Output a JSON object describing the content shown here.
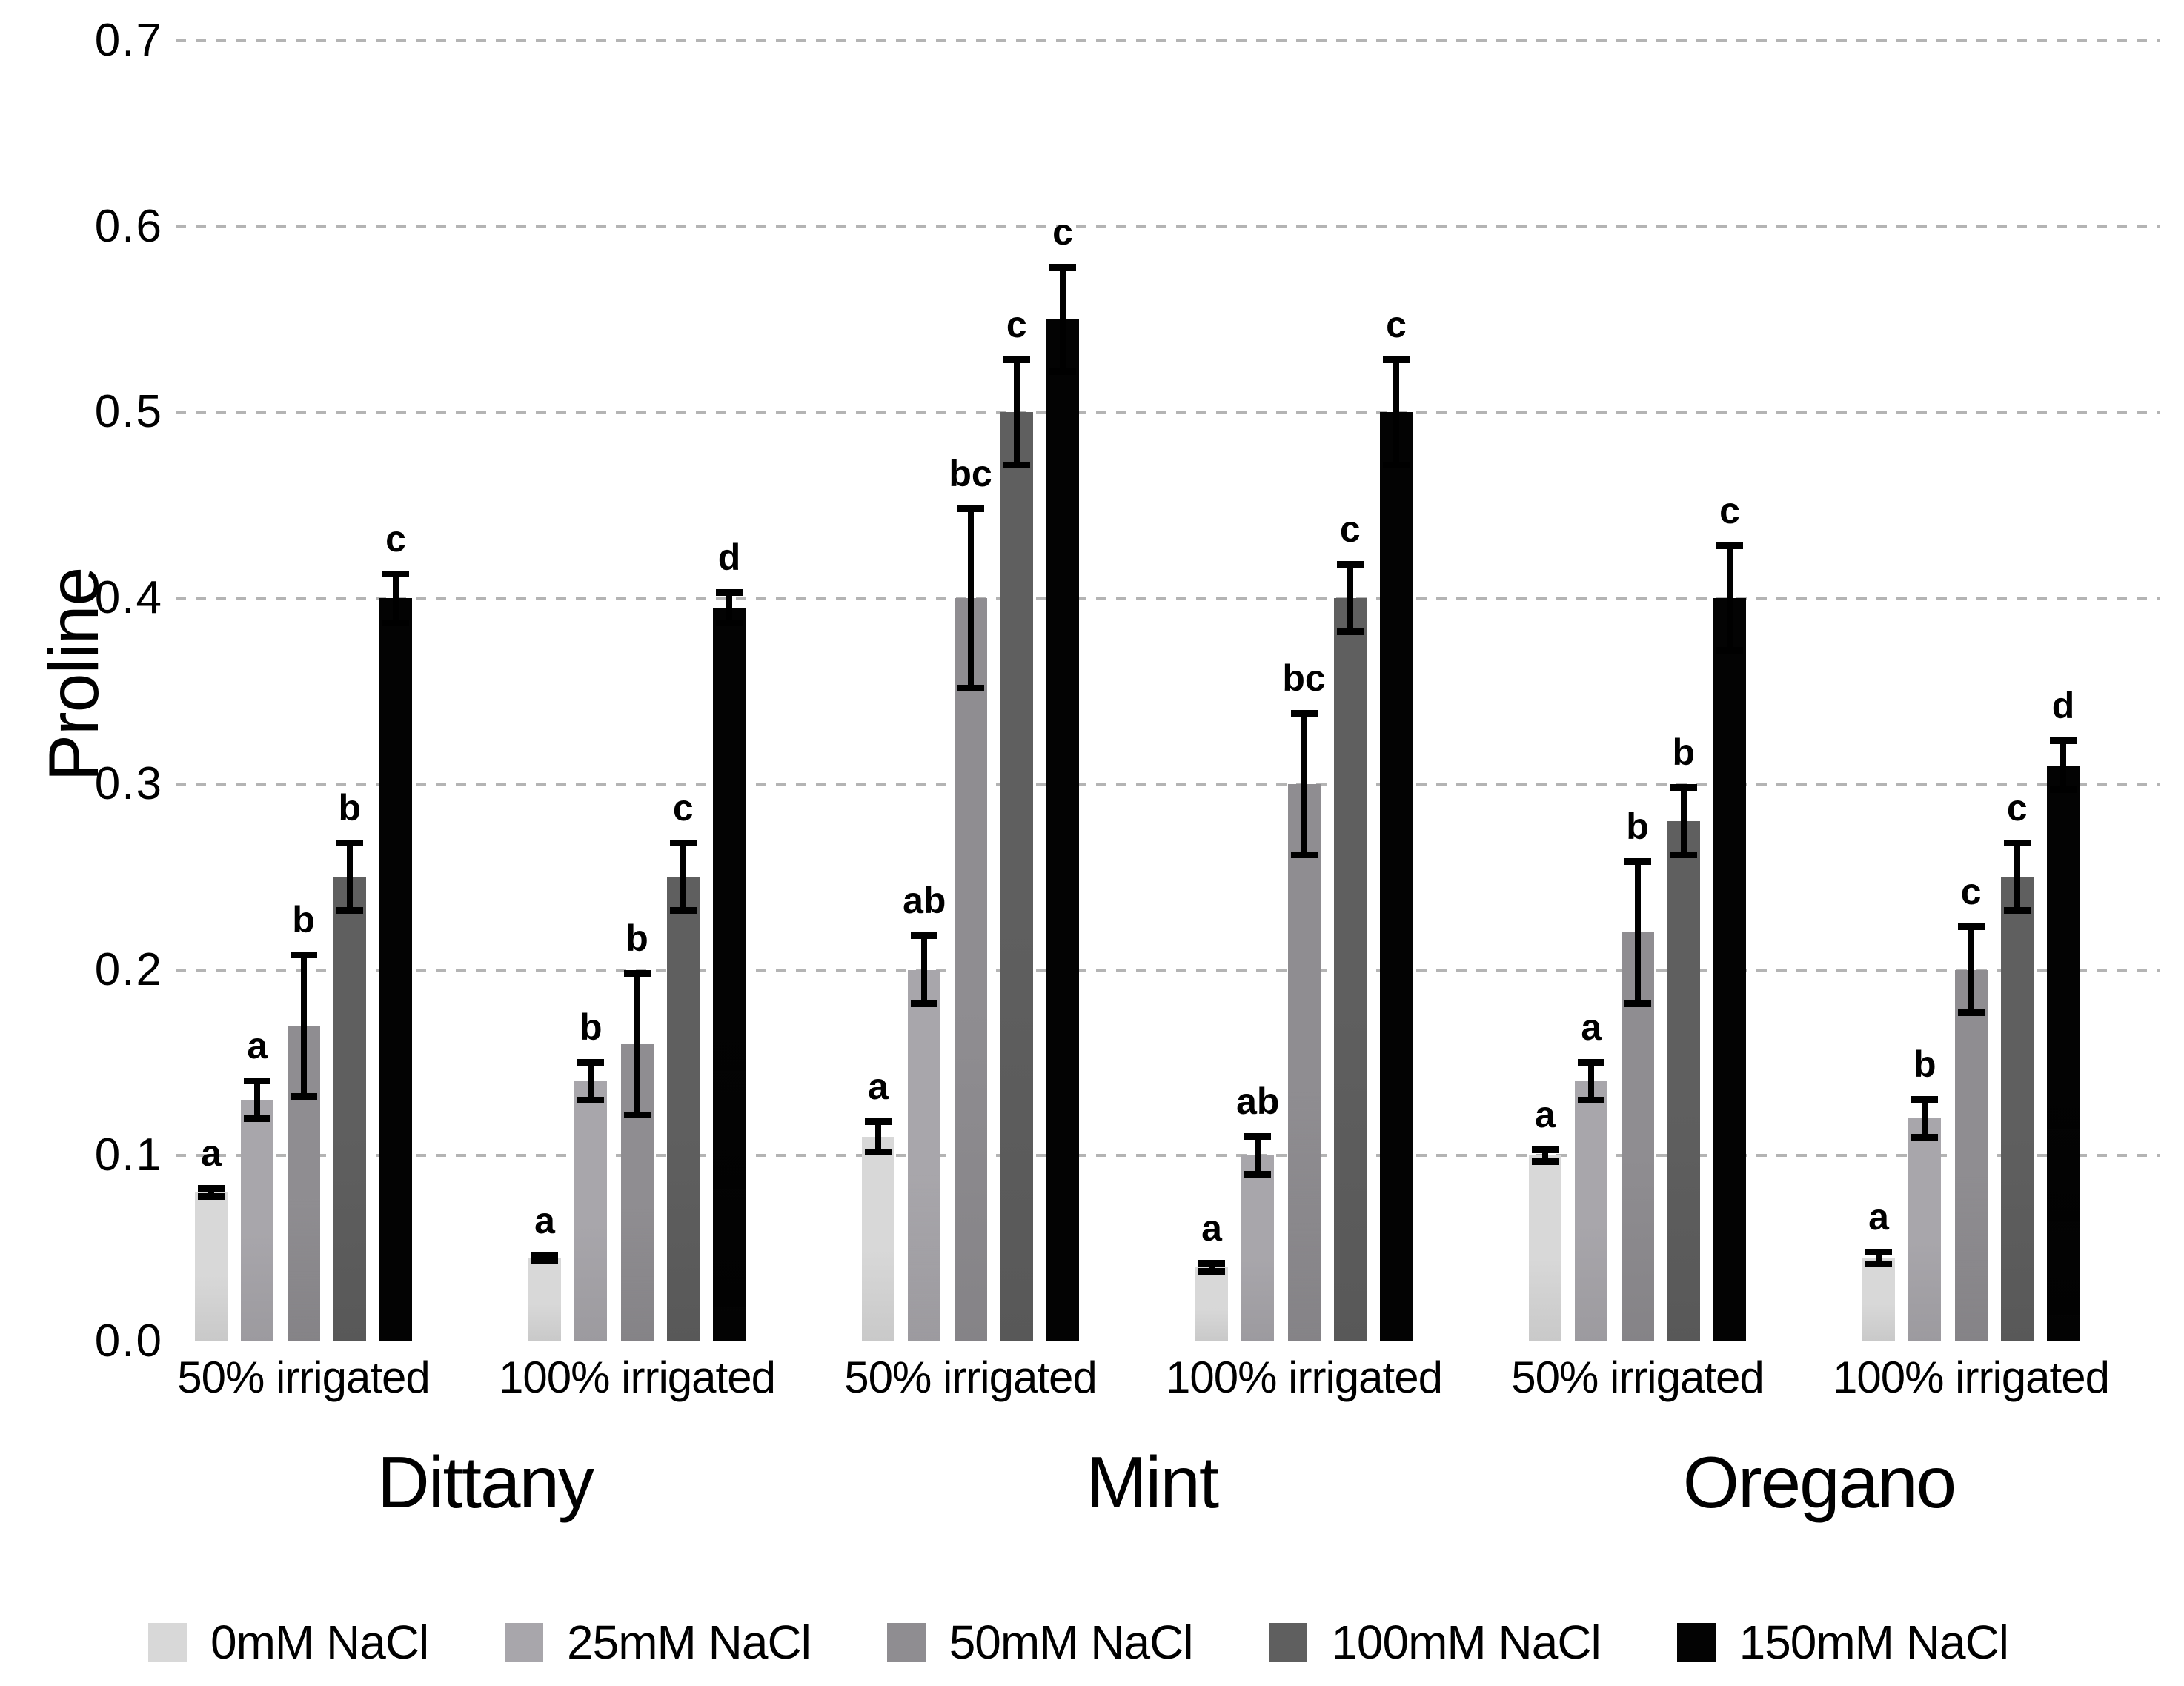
{
  "chart_data": {
    "type": "bar",
    "title": "",
    "ylabel": "Proline",
    "xlabel": "",
    "ylim": [
      0,
      0.7
    ],
    "y_ticks": [
      "0.0",
      "0.1",
      "0.2",
      "0.3",
      "0.4",
      "0.5",
      "0.6",
      "0.7"
    ],
    "grid": "horizontal dashed gridlines at 0.1 intervals (0.1 to 0.7), no axis lines",
    "legend_position": "bottom",
    "gridline_color": "#b4b4b4",
    "error_bar_color": "#000000",
    "series": [
      {
        "name": "0mM NaCl",
        "color": "#d8d8d8"
      },
      {
        "name": "25mM NaCl",
        "color": "#a8a6ab"
      },
      {
        "name": "50mM NaCl",
        "color": "#8f8d91"
      },
      {
        "name": "100mM NaCl",
        "color": "#5f5f5f"
      },
      {
        "name": "150mM NaCl",
        "color": "#030303"
      }
    ],
    "species_labels": [
      "Dittany",
      "Mint",
      "Oregano"
    ],
    "groups": [
      {
        "species": "Dittany",
        "label": "50% irrigated",
        "values": [
          0.08,
          0.13,
          0.17,
          0.25,
          0.4
        ],
        "errors": [
          0.004,
          0.012,
          0.04,
          0.02,
          0.015
        ],
        "letters": [
          "a",
          "a",
          "b",
          "b",
          "c"
        ]
      },
      {
        "species": "Dittany",
        "label": "100% irrigated",
        "values": [
          0.045,
          0.14,
          0.16,
          0.25,
          0.395
        ],
        "errors": [
          0.003,
          0.012,
          0.04,
          0.02,
          0.01
        ],
        "letters": [
          "a",
          "b",
          "b",
          "c",
          "d"
        ]
      },
      {
        "species": "Mint",
        "label": "50% irrigated",
        "values": [
          0.11,
          0.2,
          0.4,
          0.5,
          0.55
        ],
        "errors": [
          0.01,
          0.02,
          0.05,
          0.03,
          0.03
        ],
        "letters": [
          "a",
          "ab",
          "bc",
          "c",
          "c"
        ]
      },
      {
        "species": "Mint",
        "label": "100% irrigated",
        "values": [
          0.04,
          0.1,
          0.3,
          0.4,
          0.5
        ],
        "errors": [
          0.004,
          0.012,
          0.04,
          0.02,
          0.03
        ],
        "letters": [
          "a",
          "ab",
          "bc",
          "c",
          "c"
        ]
      },
      {
        "species": "Oregano",
        "label": "50% irrigated",
        "values": [
          0.1,
          0.14,
          0.22,
          0.28,
          0.4
        ],
        "errors": [
          0.005,
          0.012,
          0.04,
          0.02,
          0.03
        ],
        "letters": [
          "a",
          "a",
          "b",
          "b",
          "c"
        ]
      },
      {
        "species": "Oregano",
        "label": "100% irrigated",
        "values": [
          0.045,
          0.12,
          0.2,
          0.25,
          0.31
        ],
        "errors": [
          0.005,
          0.012,
          0.025,
          0.02,
          0.015
        ],
        "letters": [
          "a",
          "b",
          "c",
          "c",
          "d"
        ]
      }
    ]
  }
}
